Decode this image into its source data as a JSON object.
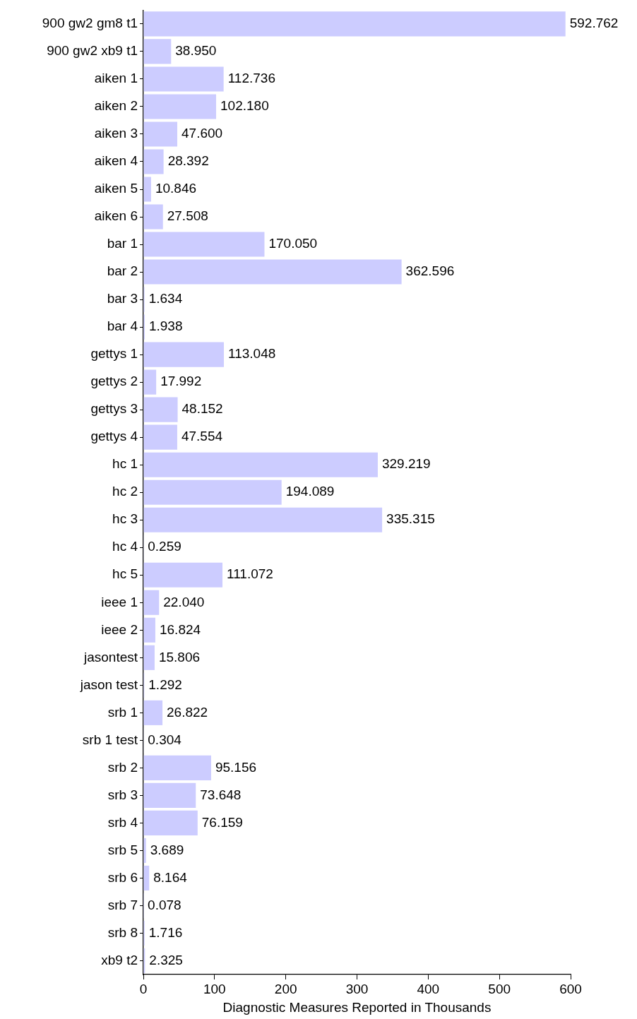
{
  "chart_data": {
    "type": "bar",
    "orientation": "horizontal",
    "xlabel": "Diagnostic Measures Reported in Thousands",
    "categories": [
      "900 gw2 gm8 t1",
      "900 gw2 xb9 t1",
      "aiken 1",
      "aiken 2",
      "aiken 3",
      "aiken 4",
      "aiken 5",
      "aiken 6",
      "bar 1",
      "bar 2",
      "bar 3",
      "bar 4",
      "gettys 1",
      "gettys 2",
      "gettys 3",
      "gettys 4",
      "hc 1",
      "hc 2",
      "hc 3",
      "hc 4",
      "hc 5",
      "ieee 1",
      "ieee 2",
      "jasontest",
      "jason test",
      "srb 1",
      "srb 1 test",
      "srb 2",
      "srb 3",
      "srb 4",
      "srb 5",
      "srb 6",
      "srb 7",
      "srb 8",
      "xb9 t2"
    ],
    "values": [
      592.762,
      38.95,
      112.736,
      102.18,
      47.6,
      28.392,
      10.846,
      27.508,
      170.05,
      362.596,
      1.634,
      1.938,
      113.048,
      17.992,
      48.152,
      47.554,
      329.219,
      194.089,
      335.315,
      0.259,
      111.072,
      22.04,
      16.824,
      15.806,
      1.292,
      26.822,
      0.304,
      95.156,
      73.648,
      76.159,
      3.689,
      8.164,
      0.078,
      1.716,
      2.325
    ],
    "value_labels": [
      "592.762",
      "38.950",
      "112.736",
      "102.180",
      "47.600",
      "28.392",
      "10.846",
      "27.508",
      "170.050",
      "362.596",
      "1.634",
      "1.938",
      "113.048",
      "17.992",
      "48.152",
      "47.554",
      "329.219",
      "194.089",
      "335.315",
      "0.259",
      "111.072",
      "22.040",
      "16.824",
      "15.806",
      "1.292",
      "26.822",
      "0.304",
      "95.156",
      "73.648",
      "76.159",
      "3.689",
      "8.164",
      "0.078",
      "1.716",
      "2.325"
    ],
    "color": "#ccccff",
    "xlim": [
      0,
      600
    ],
    "xticks": [
      0,
      100,
      200,
      300,
      400,
      500,
      600
    ],
    "grid": false,
    "legend": false
  }
}
